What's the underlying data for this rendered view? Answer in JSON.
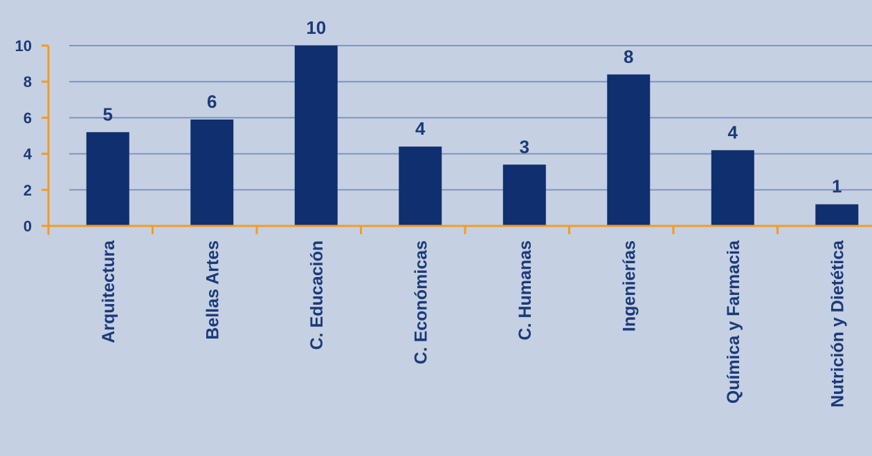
{
  "chart_data": {
    "type": "bar",
    "categories": [
      "Arquitectura",
      "Bellas Artes",
      "C. Educación",
      "C. Económicas",
      "C. Humanas",
      "Ingenierías",
      "Química y Farmacia",
      "Nutrición y Dietética"
    ],
    "values": [
      5.2,
      5.9,
      10,
      4.4,
      3.4,
      8.4,
      4.2,
      1.2
    ],
    "data_labels": [
      "5",
      "6",
      "10",
      "4",
      "3",
      "8",
      "4",
      "1"
    ],
    "y_ticks": [
      "0",
      "2",
      "4",
      "6",
      "8",
      "10"
    ],
    "ylim": [
      0,
      10
    ],
    "grid": true,
    "title": "",
    "xlabel": "",
    "ylabel": ""
  },
  "colors": {
    "background": "#c5d0e3",
    "bar": "#102f6e",
    "text": "#1b3a78",
    "axis": "#f39c1f",
    "grid": "#7f95b8"
  }
}
